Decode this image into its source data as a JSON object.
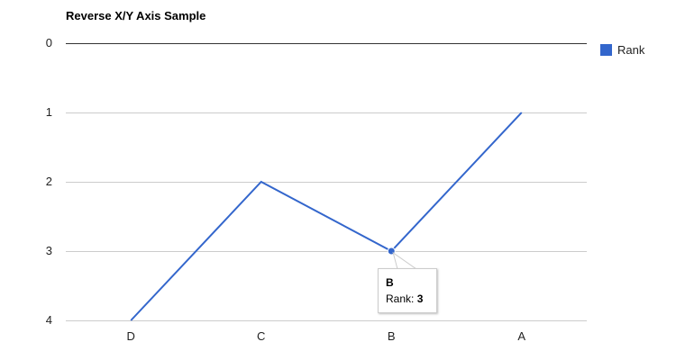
{
  "chart_data": {
    "type": "line",
    "title": "Reverse X/Y Axis Sample",
    "categories": [
      "D",
      "C",
      "B",
      "A"
    ],
    "series": [
      {
        "name": "Rank",
        "values": [
          4,
          2,
          3,
          1
        ],
        "color": "#3366cc"
      }
    ],
    "ylim": [
      0,
      4
    ],
    "y_reversed": true,
    "x_reversed": true,
    "y_ticks": [
      "0",
      "1",
      "2",
      "3",
      "4"
    ],
    "grid": true,
    "legend_position": "right"
  },
  "tooltip": {
    "category": "B",
    "label": "Rank:",
    "value": "3"
  }
}
